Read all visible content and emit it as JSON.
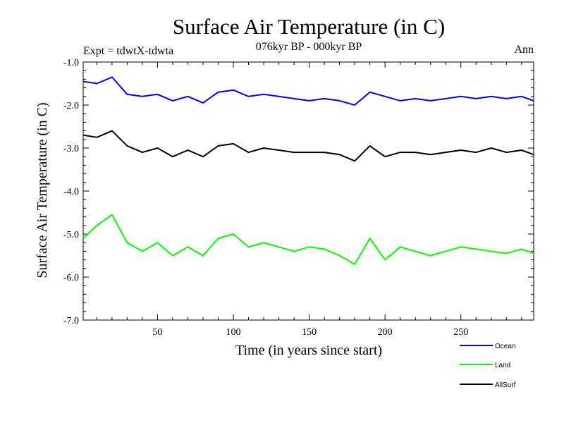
{
  "header": {
    "title": "Surface Air Temperature (in C)",
    "subtitle": "076kyr BP - 000kyr BP",
    "experiment": "Expt = tdwtX-tdwta",
    "season": "Ann"
  },
  "legend": {
    "items": [
      {
        "label": "Ocean",
        "color": "#0000ff"
      },
      {
        "label": "Land",
        "color": "#00ff00"
      },
      {
        "label": "AllSurf",
        "color": "#000000"
      }
    ]
  },
  "chart_data": {
    "type": "line",
    "title": "Surface Air Temperature (in C)",
    "subtitle": "076kyr BP - 000kyr BP",
    "xlabel": "Time (in years since start)",
    "ylabel": "Surface Air Temperature (in C)",
    "xlim": [
      1,
      298
    ],
    "ylim": [
      -7.0,
      -1.0
    ],
    "x_ticks": [
      50,
      100,
      150,
      200,
      250
    ],
    "x_tick_labels": [
      "50",
      "100",
      "150",
      "200",
      "250"
    ],
    "y_ticks": [
      -1.0,
      -2.0,
      -3.0,
      -4.0,
      -5.0,
      -6.0,
      -7.0
    ],
    "y_tick_labels": [
      "-1.0",
      "-2.0",
      "-3.0",
      "-4.0",
      "-5.0",
      "-6.0",
      "-7.0"
    ],
    "grid": false,
    "legend_position": "bottom-right",
    "x": [
      1,
      10,
      20,
      30,
      40,
      50,
      60,
      70,
      80,
      90,
      100,
      110,
      120,
      130,
      140,
      150,
      160,
      170,
      180,
      190,
      200,
      210,
      220,
      230,
      240,
      250,
      260,
      270,
      280,
      290,
      298
    ],
    "series": [
      {
        "name": "Ocean",
        "color": "#0000ff",
        "values": [
          -1.45,
          -1.5,
          -1.35,
          -1.75,
          -1.8,
          -1.75,
          -1.9,
          -1.8,
          -1.95,
          -1.7,
          -1.65,
          -1.8,
          -1.75,
          -1.8,
          -1.85,
          -1.9,
          -1.85,
          -1.9,
          -2.0,
          -1.7,
          -1.8,
          -1.9,
          -1.85,
          -1.9,
          -1.85,
          -1.8,
          -1.85,
          -1.8,
          -1.85,
          -1.8,
          -1.9
        ]
      },
      {
        "name": "Land",
        "color": "#00ff00",
        "values": [
          -5.1,
          -4.8,
          -4.55,
          -5.2,
          -5.4,
          -5.2,
          -5.5,
          -5.3,
          -5.5,
          -5.1,
          -5.0,
          -5.3,
          -5.2,
          -5.3,
          -5.4,
          -5.3,
          -5.35,
          -5.5,
          -5.7,
          -5.1,
          -5.6,
          -5.3,
          -5.4,
          -5.5,
          -5.4,
          -5.3,
          -5.35,
          -5.4,
          -5.45,
          -5.35,
          -5.45
        ]
      },
      {
        "name": "AllSurf",
        "color": "#000000",
        "values": [
          -2.7,
          -2.75,
          -2.6,
          -2.95,
          -3.1,
          -3.0,
          -3.2,
          -3.05,
          -3.2,
          -2.95,
          -2.9,
          -3.1,
          -3.0,
          -3.05,
          -3.1,
          -3.1,
          -3.1,
          -3.15,
          -3.3,
          -2.95,
          -3.2,
          -3.1,
          -3.1,
          -3.15,
          -3.1,
          -3.05,
          -3.1,
          -3.0,
          -3.1,
          -3.05,
          -3.15
        ]
      }
    ]
  }
}
